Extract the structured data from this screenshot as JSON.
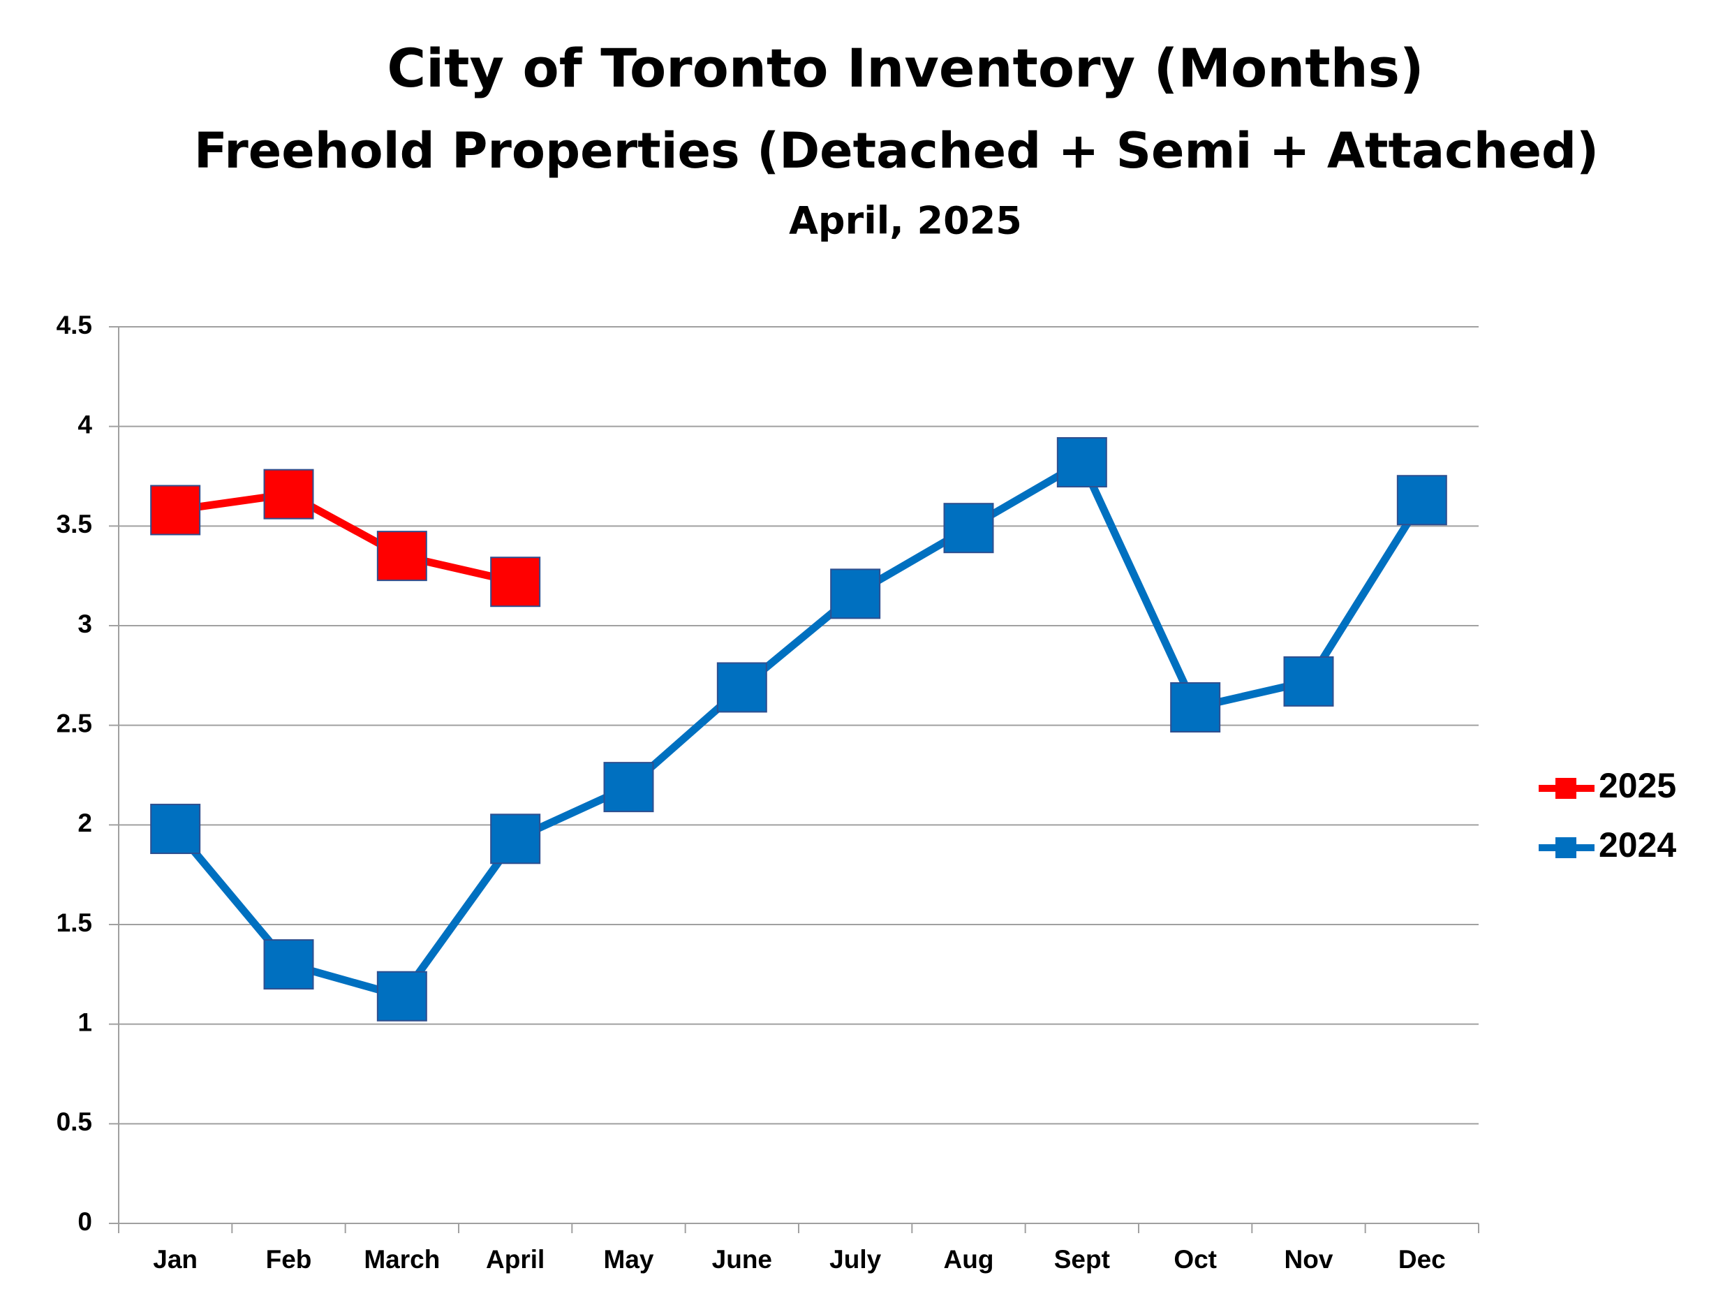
{
  "chart_data": {
    "type": "line",
    "title": "City of Toronto Inventory (Months)",
    "subtitle": "Freehold Properties (Detached + Semi + Attached)",
    "date_label": "April, 2025",
    "categories": [
      "Jan",
      "Feb",
      "March",
      "April",
      "May",
      "June",
      "July",
      "Aug",
      "Sept",
      "Oct",
      "Nov",
      "Dec"
    ],
    "series": [
      {
        "name": "2025",
        "color": "#ff0000",
        "values": [
          3.58,
          3.66,
          3.35,
          3.22,
          null,
          null,
          null,
          null,
          null,
          null,
          null,
          null
        ]
      },
      {
        "name": "2024",
        "color": "#0070c0",
        "values": [
          1.98,
          1.3,
          1.14,
          1.93,
          2.19,
          2.69,
          3.16,
          3.49,
          3.82,
          2.59,
          2.72,
          3.63
        ]
      }
    ],
    "ylim": [
      0,
      4.5
    ],
    "yticks": [
      0,
      0.5,
      1,
      1.5,
      2,
      2.5,
      3,
      3.5,
      4,
      4.5
    ],
    "grid": true,
    "legend": "right"
  }
}
